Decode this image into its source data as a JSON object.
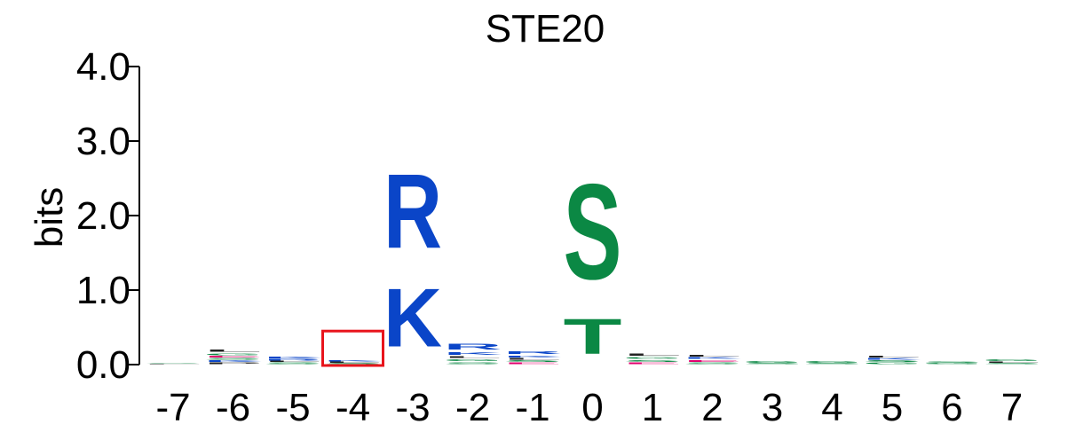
{
  "chart_data": {
    "type": "sequence-logo",
    "title": "STE20",
    "ylabel": "bits",
    "ylim": [
      0,
      4.0
    ],
    "yticks": [
      "0.0",
      "1.0",
      "2.0",
      "3.0",
      "4.0"
    ],
    "positions": [
      "-7",
      "-6",
      "-5",
      "-4",
      "-3",
      "-2",
      "-1",
      "0",
      "1",
      "2",
      "3",
      "4",
      "5",
      "6",
      "7"
    ],
    "highlighted_position": "-4",
    "highlight_color": "#e8141c",
    "residue_colors": {
      "K": "#0a45c8",
      "R": "#0a45c8",
      "H": "#0a45c8",
      "S": "#0b8844",
      "T": "#0b8844",
      "G": "#0b8844",
      "Y": "#0b8844",
      "C": "#0b8844",
      "N": "#0b8844",
      "Q": "#0b8844",
      "D": "#e1006e",
      "E": "#e1006e",
      "A": "#222222",
      "L": "#222222",
      "I": "#222222",
      "V": "#222222",
      "P": "#222222",
      "F": "#222222",
      "M": "#222222",
      "W": "#222222"
    },
    "stacks": [
      {
        "position": "-7",
        "letters": [
          {
            "residue": "L",
            "bits": 0.01
          },
          {
            "residue": "S",
            "bits": 0.01
          }
        ]
      },
      {
        "position": "-6",
        "letters": [
          {
            "residue": "P",
            "bits": 0.03
          },
          {
            "residue": "K",
            "bits": 0.03
          },
          {
            "residue": "S",
            "bits": 0.03
          },
          {
            "residue": "E",
            "bits": 0.03
          },
          {
            "residue": "G",
            "bits": 0.04
          },
          {
            "residue": "L",
            "bits": 0.05
          }
        ]
      },
      {
        "position": "-5",
        "letters": [
          {
            "residue": "S",
            "bits": 0.03
          },
          {
            "residue": "L",
            "bits": 0.02
          },
          {
            "residue": "R",
            "bits": 0.03
          },
          {
            "residue": "K",
            "bits": 0.03
          }
        ]
      },
      {
        "position": "-4",
        "letters": [
          {
            "residue": "S",
            "bits": 0.02
          },
          {
            "residue": "L",
            "bits": 0.02
          },
          {
            "residue": "K",
            "bits": 0.02
          }
        ]
      },
      {
        "position": "-3",
        "letters": [
          {
            "residue": "K",
            "bits": 1.25
          },
          {
            "residue": "R",
            "bits": 1.6
          }
        ]
      },
      {
        "position": "-2",
        "letters": [
          {
            "residue": "S",
            "bits": 0.04
          },
          {
            "residue": "G",
            "bits": 0.04
          },
          {
            "residue": "L",
            "bits": 0.04
          },
          {
            "residue": "K",
            "bits": 0.06
          },
          {
            "residue": "R",
            "bits": 0.12
          }
        ]
      },
      {
        "position": "-1",
        "letters": [
          {
            "residue": "E",
            "bits": 0.03
          },
          {
            "residue": "S",
            "bits": 0.03
          },
          {
            "residue": "L",
            "bits": 0.03
          },
          {
            "residue": "K",
            "bits": 0.04
          },
          {
            "residue": "R",
            "bits": 0.06
          }
        ]
      },
      {
        "position": "0",
        "letters": [
          {
            "residue": "T",
            "bits": 0.75
          },
          {
            "residue": "S",
            "bits": 2.05
          }
        ]
      },
      {
        "position": "1",
        "letters": [
          {
            "residue": "E",
            "bits": 0.03
          },
          {
            "residue": "S",
            "bits": 0.04
          },
          {
            "residue": "G",
            "bits": 0.04
          },
          {
            "residue": "L",
            "bits": 0.05
          }
        ]
      },
      {
        "position": "2",
        "letters": [
          {
            "residue": "S",
            "bits": 0.03
          },
          {
            "residue": "E",
            "bits": 0.04
          },
          {
            "residue": "K",
            "bits": 0.03
          },
          {
            "residue": "L",
            "bits": 0.04
          }
        ]
      },
      {
        "position": "3",
        "letters": [
          {
            "residue": "S",
            "bits": 0.02
          },
          {
            "residue": "G",
            "bits": 0.03
          }
        ]
      },
      {
        "position": "4",
        "letters": [
          {
            "residue": "S",
            "bits": 0.02
          },
          {
            "residue": "G",
            "bits": 0.03
          }
        ]
      },
      {
        "position": "5",
        "letters": [
          {
            "residue": "G",
            "bits": 0.03
          },
          {
            "residue": "S",
            "bits": 0.03
          },
          {
            "residue": "K",
            "bits": 0.03
          },
          {
            "residue": "L",
            "bits": 0.03
          }
        ]
      },
      {
        "position": "6",
        "letters": [
          {
            "residue": "G",
            "bits": 0.02
          },
          {
            "residue": "S",
            "bits": 0.02
          }
        ]
      },
      {
        "position": "7",
        "letters": [
          {
            "residue": "S",
            "bits": 0.02
          },
          {
            "residue": "L",
            "bits": 0.02
          },
          {
            "residue": "G",
            "bits": 0.03
          }
        ]
      }
    ]
  }
}
